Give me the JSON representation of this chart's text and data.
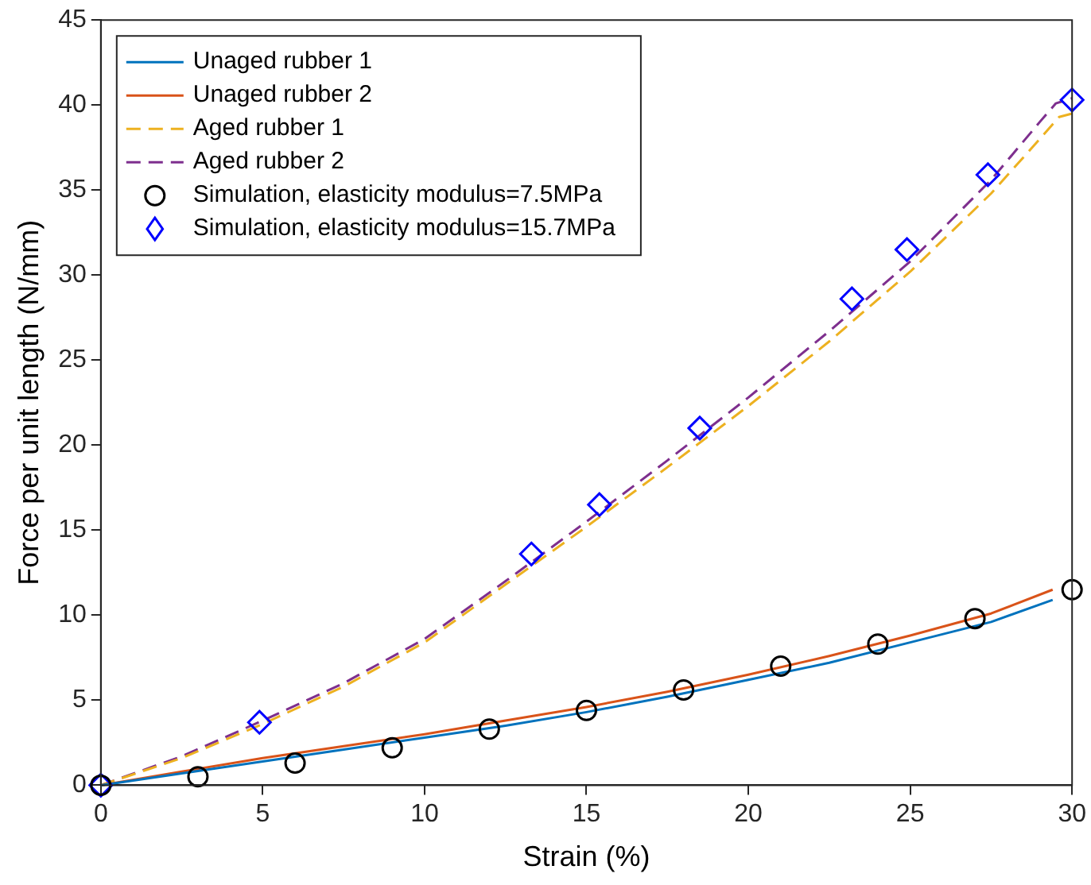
{
  "chart_data": {
    "type": "line",
    "xlabel": "Strain (%)",
    "ylabel": "Force per unit length (N/mm)",
    "xlim": [
      0,
      30
    ],
    "xticks": [
      0,
      5,
      10,
      15,
      20,
      25,
      30
    ],
    "ylim": [
      0,
      45
    ],
    "yticks": [
      0,
      5,
      10,
      15,
      20,
      25,
      30,
      35,
      40,
      45
    ],
    "grid": false,
    "legend": "top left",
    "series": [
      {
        "name": "Unaged rubber 1",
        "color": "#0072bd",
        "line_style": "solid",
        "marker": "none",
        "x": [
          0,
          2.5,
          5,
          7.5,
          10,
          12.5,
          15,
          17.5,
          20,
          22.5,
          25,
          27.5,
          29.4
        ],
        "values": [
          0,
          0.7,
          1.4,
          2.1,
          2.8,
          3.5,
          4.3,
          5.2,
          6.2,
          7.2,
          8.4,
          9.6,
          10.9
        ]
      },
      {
        "name": "Unaged rubber 2",
        "color": "#d95319",
        "line_style": "solid",
        "marker": "none",
        "x": [
          0,
          2.5,
          5,
          7.5,
          10,
          12.5,
          15,
          17.5,
          20,
          22.5,
          25,
          27.5,
          29.4
        ],
        "values": [
          0,
          0.8,
          1.6,
          2.3,
          3.0,
          3.8,
          4.6,
          5.5,
          6.5,
          7.6,
          8.8,
          10.1,
          11.5
        ]
      },
      {
        "name": "Aged rubber 1",
        "color": "#edb120",
        "line_style": "dashed",
        "marker": "none",
        "x": [
          0,
          2.5,
          5,
          7.5,
          10,
          12.5,
          15,
          17.5,
          20,
          22.5,
          25,
          27.5,
          29,
          29.6,
          30
        ],
        "values": [
          0,
          1.6,
          3.6,
          5.8,
          8.4,
          11.8,
          15.2,
          18.7,
          22.3,
          26.1,
          30.2,
          34.8,
          38.0,
          39.3,
          39.5
        ]
      },
      {
        "name": "Aged rubber 2",
        "color": "#7e2f8e",
        "line_style": "dashed",
        "marker": "none",
        "x": [
          0,
          2.5,
          5,
          7.5,
          10,
          12.5,
          15,
          17.5,
          20,
          22.5,
          25,
          27.5,
          29,
          29.5,
          30
        ],
        "values": [
          0,
          1.7,
          3.8,
          6.0,
          8.6,
          12.0,
          15.5,
          19.1,
          22.8,
          26.7,
          30.8,
          35.6,
          39.0,
          40.1,
          40.4
        ]
      },
      {
        "name": "Simulation, elasticity modulus=7.5MPa",
        "type": "scatter",
        "color": "#000000",
        "marker": "circle",
        "x": [
          0,
          3,
          6,
          9,
          12,
          15,
          18,
          21,
          24,
          27,
          30
        ],
        "values": [
          0,
          0.5,
          1.3,
          2.2,
          3.3,
          4.4,
          5.6,
          7.0,
          8.3,
          9.8,
          11.5
        ]
      },
      {
        "name": "Simulation, elasticity modulus=15.7MPa",
        "type": "scatter",
        "color": "#0000ff",
        "marker": "diamond",
        "x": [
          0,
          4.9,
          13.3,
          15.4,
          18.5,
          23.2,
          24.9,
          27.4,
          30
        ],
        "values": [
          0,
          3.7,
          13.6,
          16.5,
          21.0,
          28.6,
          31.5,
          35.9,
          40.3
        ]
      }
    ]
  }
}
